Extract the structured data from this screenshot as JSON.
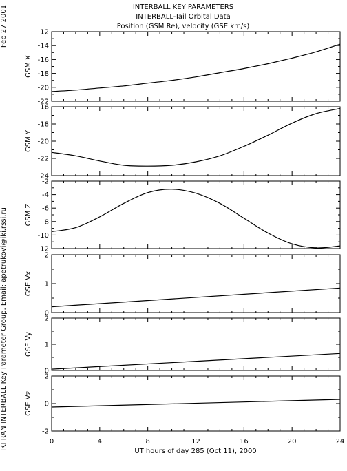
{
  "header": {
    "date": "Feb 27 2001",
    "title_lines": [
      "INTERBALL KEY PARAMETERS",
      "INTERBALL-Tail Orbital Data",
      "Position (GSM Re), velocity (GSE km/s)"
    ],
    "side_credit": "IKI RAN INTERBALL Key Parameter Group, Email: apetrukovi@iki.rssi.ru"
  },
  "chart_data": {
    "type": "line",
    "title": "INTERBALL-Tail Orbital Data",
    "xlabel": "UT hours of day 285 (Oct 11), 2000",
    "xlim": [
      0,
      24
    ],
    "x_ticks": [
      0,
      4,
      8,
      12,
      16,
      20,
      24
    ],
    "x_tick_labels": [
      "0",
      "4",
      "8",
      "12",
      "16",
      "20",
      "24"
    ],
    "panels": [
      {
        "ylabel": "GSM X",
        "ylim": [
          -22,
          -12
        ],
        "y_ticks": [
          -22,
          -20,
          -18,
          -16,
          -14,
          -12
        ],
        "y_tick_labels": [
          "-22",
          "-20",
          "-18",
          "-16",
          "-14",
          "-12"
        ],
        "x": [
          0,
          2,
          4,
          6,
          8,
          10,
          12,
          14,
          16,
          18,
          20,
          22,
          24
        ],
        "values": [
          -20.6,
          -20.4,
          -20.1,
          -19.8,
          -19.4,
          -19.0,
          -18.5,
          -17.9,
          -17.3,
          -16.6,
          -15.8,
          -14.9,
          -13.8
        ]
      },
      {
        "ylabel": "GSM Y",
        "ylim": [
          -24,
          -16
        ],
        "y_ticks": [
          -24,
          -22,
          -20,
          -18,
          -16
        ],
        "y_tick_labels": [
          "-24",
          "-22",
          "-20",
          "-18",
          "-16"
        ],
        "x": [
          0,
          2,
          4,
          6,
          8,
          10,
          12,
          14,
          16,
          18,
          20,
          22,
          24
        ],
        "values": [
          -21.3,
          -21.7,
          -22.3,
          -22.8,
          -22.9,
          -22.8,
          -22.4,
          -21.7,
          -20.6,
          -19.3,
          -17.9,
          -16.8,
          -16.2
        ]
      },
      {
        "ylabel": "GSM Z",
        "ylim": [
          -12,
          -2
        ],
        "y_ticks": [
          -12,
          -10,
          -8,
          -6,
          -4,
          -2
        ],
        "y_tick_labels": [
          "-12",
          "-10",
          "-8",
          "-6",
          "-4",
          "-2"
        ],
        "x": [
          0,
          2,
          4,
          6,
          8,
          10,
          12,
          14,
          16,
          18,
          20,
          22,
          24
        ],
        "values": [
          -9.5,
          -8.9,
          -7.3,
          -5.3,
          -3.7,
          -3.2,
          -3.8,
          -5.3,
          -7.5,
          -9.7,
          -11.3,
          -11.9,
          -11.6
        ]
      },
      {
        "ylabel": "GSE Vx",
        "ylim": [
          0,
          2
        ],
        "y_ticks": [
          0,
          1,
          2
        ],
        "y_tick_labels": [
          "0",
          "1",
          "2"
        ],
        "x": [
          0,
          24
        ],
        "values": [
          0.2,
          0.85
        ]
      },
      {
        "ylabel": "GSE Vy",
        "ylim": [
          0,
          2
        ],
        "y_ticks": [
          0,
          1,
          2
        ],
        "y_tick_labels": [
          "0",
          "1",
          "2"
        ],
        "x": [
          0,
          24
        ],
        "values": [
          0.05,
          0.65
        ]
      },
      {
        "ylabel": "GSE Vz",
        "ylim": [
          -2,
          2
        ],
        "y_ticks": [
          -2,
          0,
          2
        ],
        "y_tick_labels": [
          "-2",
          "0",
          "2"
        ],
        "x": [
          0,
          24
        ],
        "values": [
          -0.25,
          0.3
        ]
      }
    ],
    "grid": false,
    "colors": {
      "line": "#000000",
      "frame": "#000000",
      "background": "#ffffff"
    }
  }
}
